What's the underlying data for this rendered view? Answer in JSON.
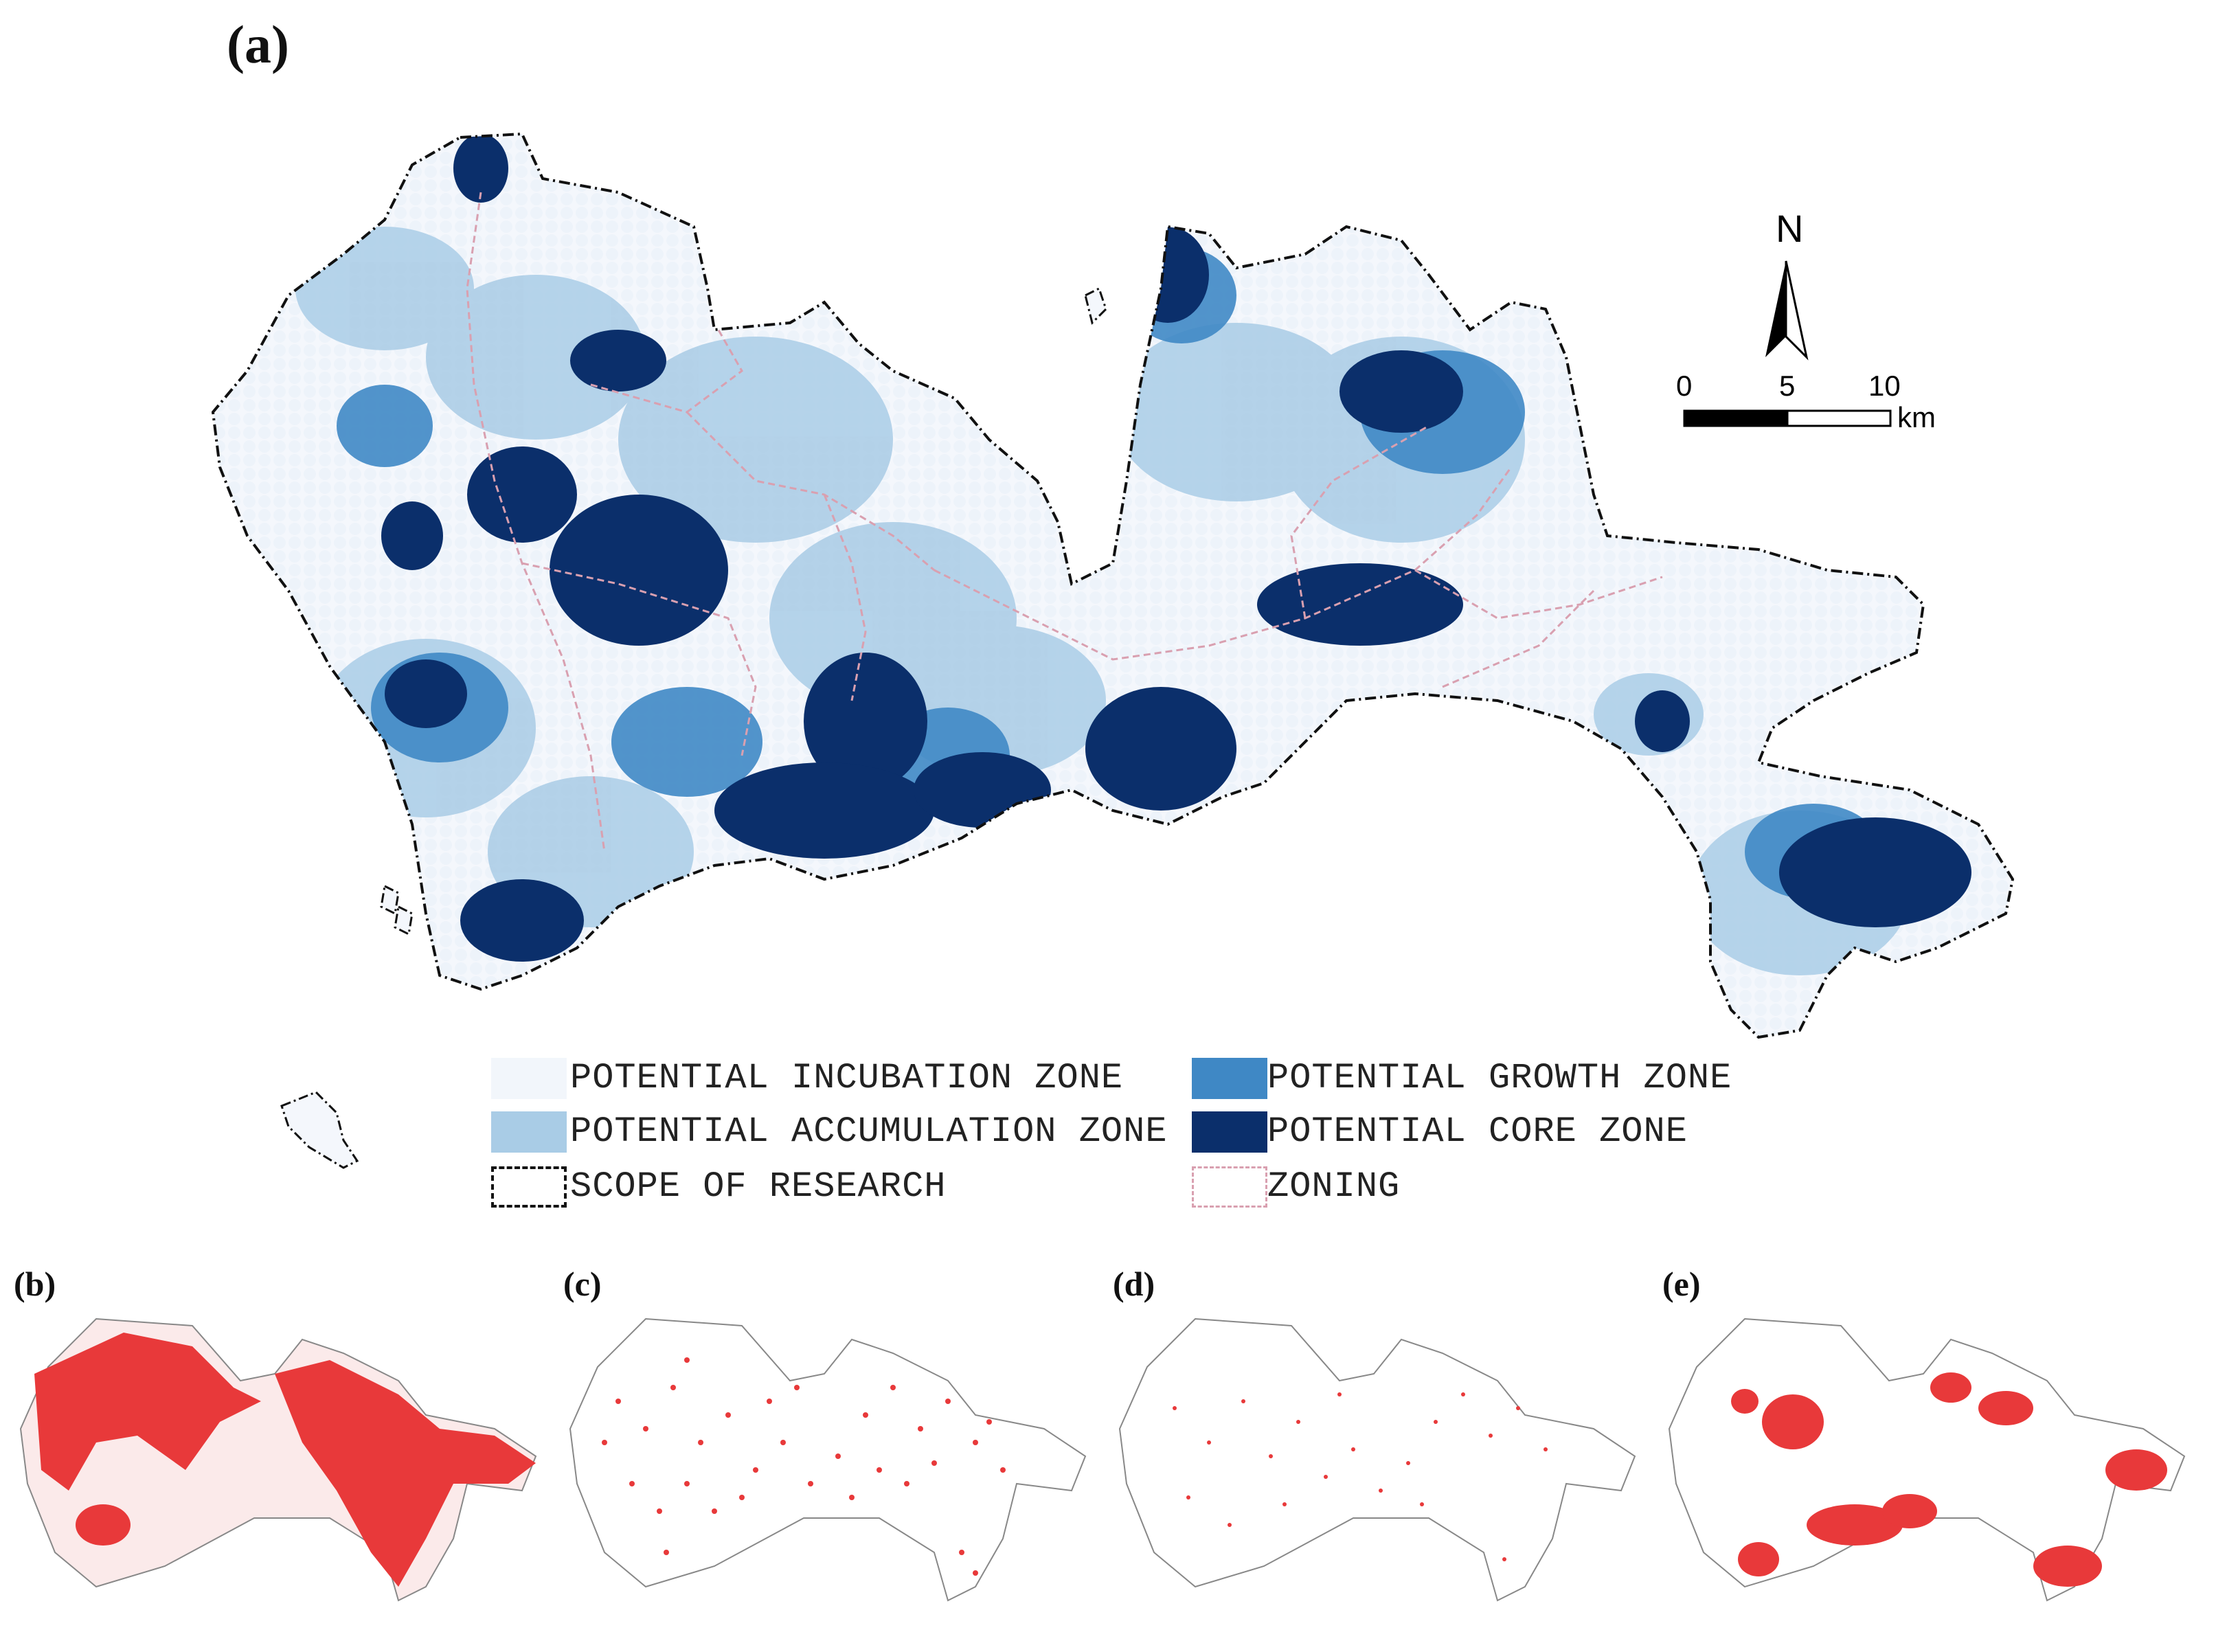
{
  "panels": {
    "main": "(a)",
    "b": "(b)",
    "c": "(c)",
    "d": "(d)",
    "e": "(e)"
  },
  "north_label": "N",
  "scalebar": {
    "ticks": [
      "0",
      "5",
      "10"
    ],
    "unit": "km"
  },
  "legend": {
    "incubation": "POTENTIAL INCUBATION ZONE",
    "accumulation": "POTENTIAL ACCUMULATION ZONE",
    "scope": "SCOPE OF RESEARCH",
    "growth": "POTENTIAL GROWTH ZONE",
    "core": "POTENTIAL CORE ZONE",
    "zoning": "ZONING"
  },
  "colors": {
    "incubation": "#eef3fa",
    "accumulation": "#a9cce6",
    "growth": "#3f88c5",
    "core": "#0b2f6b",
    "scope": "#111111",
    "zoning": "#d9a0b0",
    "highlight": "#e8393a"
  }
}
